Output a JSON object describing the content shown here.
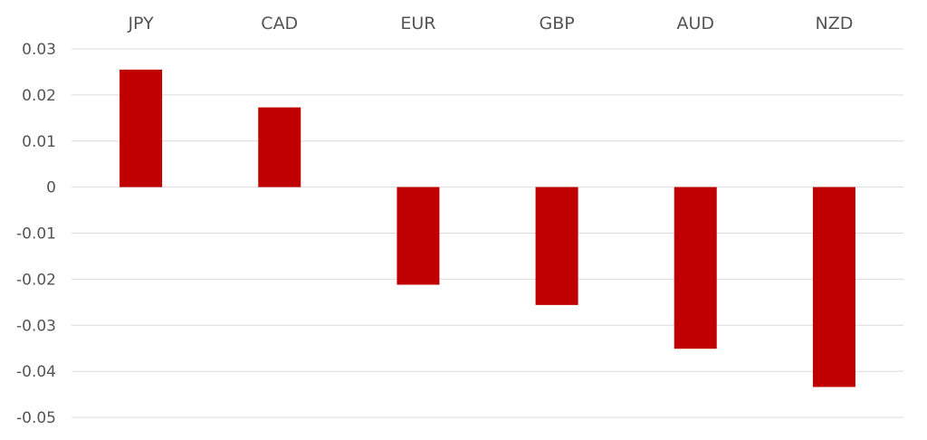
{
  "chart_data": {
    "type": "bar",
    "title": "",
    "xlabel": "",
    "ylabel": "",
    "categories": [
      "JPY",
      "CAD",
      "EUR",
      "GBP",
      "AUD",
      "NZD"
    ],
    "values": [
      0.0255,
      0.0173,
      -0.0212,
      -0.0256,
      -0.0351,
      -0.0434
    ],
    "ylim": [
      -0.05,
      0.03
    ],
    "yticks": [
      "0.03",
      "0.02",
      "0.01",
      "0",
      "-0.01",
      "-0.02",
      "-0.03",
      "-0.04",
      "-0.05"
    ],
    "grid": true,
    "category_axis_position": "top",
    "colors": {
      "bar": "#c00000",
      "grid": "#dcdcdc",
      "text": "#555555"
    }
  }
}
